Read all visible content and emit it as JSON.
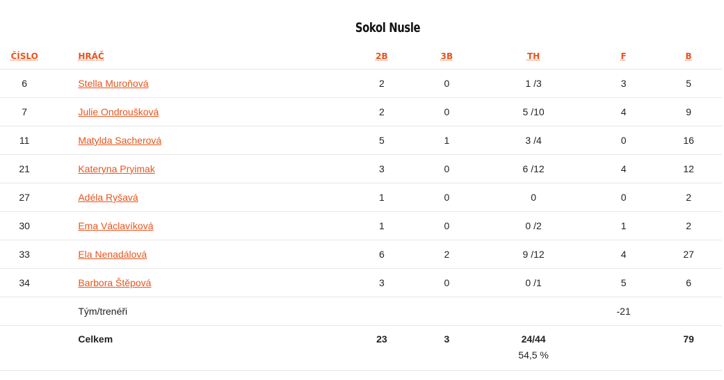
{
  "title": "Sokol Nusle",
  "headers": {
    "number": "ČÍSLO",
    "player": "HRÁČ",
    "two": "2B",
    "three": "3B",
    "ft": "TH",
    "fouls": "F",
    "points": "B"
  },
  "rows": [
    {
      "num": "6",
      "name": "Stella Muroňová",
      "two": "2",
      "three": "0",
      "ft": "1 /3",
      "fouls": "3",
      "points": "5"
    },
    {
      "num": "7",
      "name": "Julie Ondroušková",
      "two": "2",
      "three": "0",
      "ft": "5 /10",
      "fouls": "4",
      "points": "9"
    },
    {
      "num": "11",
      "name": "Matylda Sacherová",
      "two": "5",
      "three": "1",
      "ft": "3 /4",
      "fouls": "0",
      "points": "16"
    },
    {
      "num": "21",
      "name": "Kateryna Pryimak",
      "two": "3",
      "three": "0",
      "ft": "6 /12",
      "fouls": "4",
      "points": "12"
    },
    {
      "num": "27",
      "name": "Adéla Ryšavá",
      "two": "1",
      "three": "0",
      "ft": "0",
      "fouls": "0",
      "points": "2"
    },
    {
      "num": "30",
      "name": "Ema Václavíková",
      "two": "1",
      "three": "0",
      "ft": "0 /2",
      "fouls": "1",
      "points": "2"
    },
    {
      "num": "33",
      "name": "Ela Nenadálová",
      "two": "6",
      "three": "2",
      "ft": "9 /12",
      "fouls": "4",
      "points": "27"
    },
    {
      "num": "34",
      "name": "Barbora Štěpová",
      "two": "3",
      "three": "0",
      "ft": "0 /1",
      "fouls": "5",
      "points": "6"
    }
  ],
  "team": {
    "label": "Tým/trenéři",
    "fouls": "-21"
  },
  "total": {
    "label": "Celkem",
    "two": "23",
    "three": "3",
    "ft": "24/44",
    "ft_pct": "54,5 %",
    "points": "79"
  },
  "colors": {
    "accent": "#e8541c"
  }
}
